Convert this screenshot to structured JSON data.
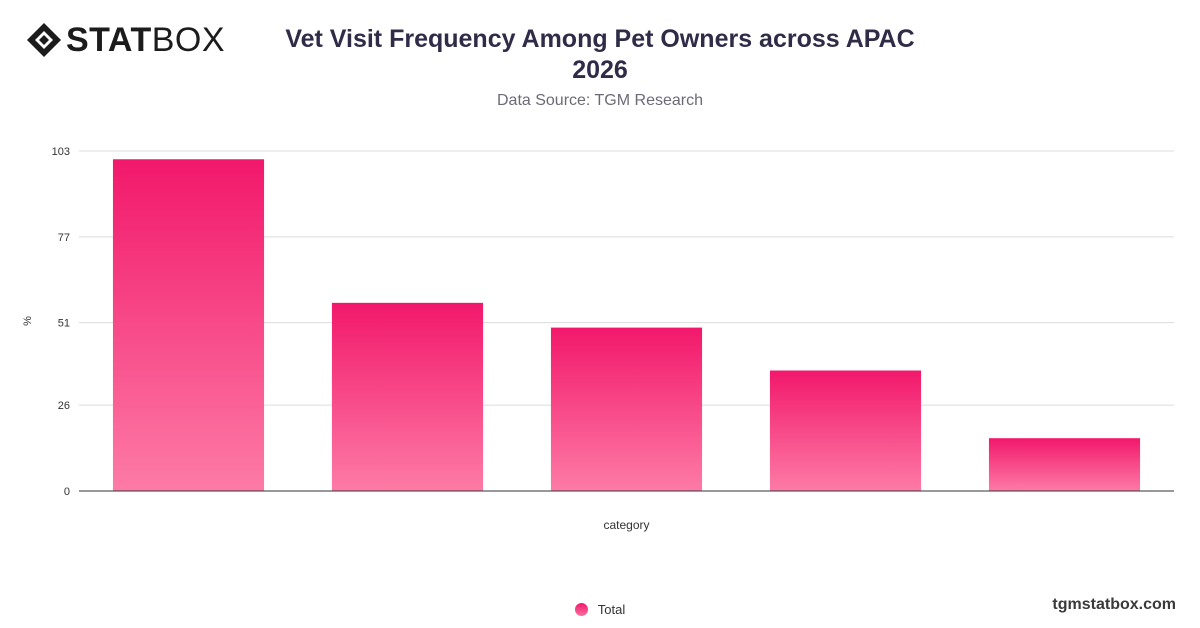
{
  "brand": {
    "logo_bold": "STAT",
    "logo_light": "BOX",
    "watermark": "tgmstatbox.com"
  },
  "chart_data": {
    "type": "bar",
    "title_line1": "Vet Visit Frequency Among Pet Owners across APAC",
    "title_line2": "2026",
    "subtitle": "Data Source: TGM Research",
    "xlabel": "category",
    "ylabel": "%",
    "ylim": [
      0,
      103
    ],
    "yticks": [
      0,
      26,
      51,
      77,
      103
    ],
    "categories": [
      "",
      "",
      "",
      "",
      ""
    ],
    "series": [
      {
        "name": "Total",
        "values": [
          100.5,
          57,
          49.5,
          36.5,
          16
        ]
      }
    ],
    "grid": true,
    "legend_position": "bottom-center",
    "colors": {
      "bar_top": "#f2186b",
      "bar_bottom": "#fd7ba6"
    }
  }
}
